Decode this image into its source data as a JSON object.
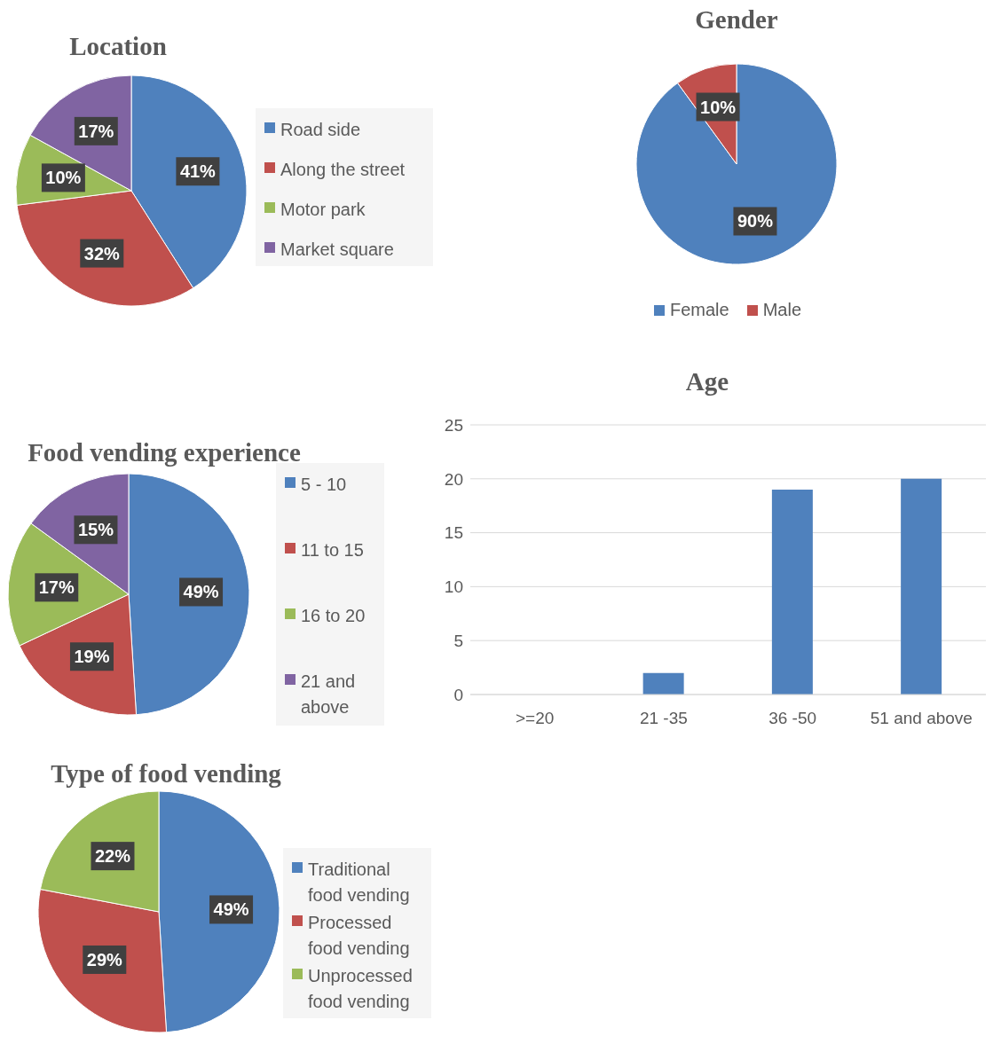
{
  "chart_data": [
    {
      "type": "pie",
      "title": "Location",
      "categories": [
        "Road side",
        "Along the street",
        "Motor park",
        "Market square"
      ],
      "values": [
        41,
        32,
        10,
        17
      ],
      "colors": [
        "#4f81bd",
        "#c0504d",
        "#9bbb59",
        "#8064a2"
      ],
      "value_labels": [
        "41%",
        "32%",
        "10%",
        "17%"
      ],
      "legend": "right"
    },
    {
      "type": "pie",
      "title": "Gender",
      "categories": [
        "Female",
        "Male"
      ],
      "values": [
        90,
        10
      ],
      "colors": [
        "#4f81bd",
        "#c0504d"
      ],
      "value_labels": [
        "90%",
        "10%"
      ],
      "legend": "bottom"
    },
    {
      "type": "pie",
      "title": "Food vending experience",
      "categories": [
        "5 - 10",
        "11 to 15",
        "16 to 20",
        "21 and above"
      ],
      "values": [
        49,
        19,
        17,
        15
      ],
      "colors": [
        "#4f81bd",
        "#c0504d",
        "#9bbb59",
        "#8064a2"
      ],
      "value_labels": [
        "49%",
        "19%",
        "17%",
        "15%"
      ],
      "legend": "right"
    },
    {
      "type": "bar",
      "title": "Age",
      "categories": [
        ">=20",
        "21 -35",
        "36 -50",
        "51 and above"
      ],
      "values": [
        0,
        2,
        19,
        20
      ],
      "color": "#4f81bd",
      "ylim": [
        0,
        25
      ],
      "yticks": [
        0,
        5,
        10,
        15,
        20,
        25
      ],
      "grid": "y"
    },
    {
      "type": "pie",
      "title": "Type of food vending",
      "categories": [
        "Traditional food vending",
        "Processed food vending",
        "Unprocessed food vending"
      ],
      "values": [
        49,
        29,
        22
      ],
      "colors": [
        "#4f81bd",
        "#c0504d",
        "#9bbb59"
      ],
      "value_labels": [
        "49%",
        "29%",
        "22%"
      ],
      "legend": "right"
    }
  ]
}
